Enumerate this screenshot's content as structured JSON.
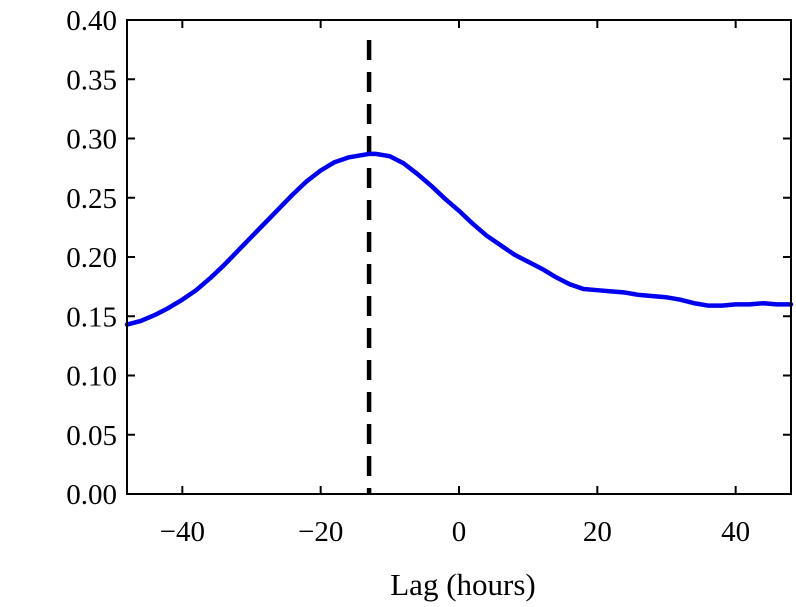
{
  "chart_data": {
    "type": "line",
    "title": "",
    "xlabel": "Lag (hours)",
    "ylabel": "",
    "xlim": [
      -48,
      48
    ],
    "ylim": [
      0.0,
      0.4
    ],
    "x_ticks": [
      -40,
      -20,
      0,
      20,
      40
    ],
    "x_tick_labels": [
      "−40",
      "−20",
      "0",
      "20",
      "40"
    ],
    "y_ticks": [
      0.0,
      0.05,
      0.1,
      0.15,
      0.2,
      0.25,
      0.3,
      0.35,
      0.4
    ],
    "y_tick_labels": [
      "0.00",
      "0.05",
      "0.10",
      "0.15",
      "0.20",
      "0.25",
      "0.30",
      "0.35",
      "0.40"
    ],
    "grid": false,
    "series": [
      {
        "color": "#0000ee",
        "x": [
          -48,
          -46,
          -44,
          -42,
          -40,
          -38,
          -36,
          -34,
          -32,
          -30,
          -28,
          -26,
          -24,
          -22,
          -20,
          -18,
          -16,
          -14,
          -13,
          -12,
          -10,
          -8,
          -6,
          -4,
          -2,
          0,
          2,
          4,
          6,
          8,
          10,
          12,
          14,
          16,
          18,
          20,
          22,
          24,
          26,
          28,
          30,
          32,
          34,
          36,
          38,
          40,
          42,
          44,
          46,
          48
        ],
        "y": [
          0.143,
          0.146,
          0.151,
          0.157,
          0.164,
          0.172,
          0.182,
          0.193,
          0.205,
          0.217,
          0.229,
          0.241,
          0.253,
          0.264,
          0.273,
          0.28,
          0.284,
          0.286,
          0.287,
          0.287,
          0.285,
          0.279,
          0.27,
          0.26,
          0.249,
          0.239,
          0.228,
          0.218,
          0.21,
          0.202,
          0.196,
          0.19,
          0.183,
          0.177,
          0.173,
          0.172,
          0.171,
          0.17,
          0.168,
          0.167,
          0.166,
          0.164,
          0.161,
          0.159,
          0.159,
          0.16,
          0.16,
          0.161,
          0.16,
          0.16
        ]
      }
    ],
    "vlines": [
      {
        "x": -13,
        "style": "dashed",
        "color": "#000000"
      }
    ]
  }
}
